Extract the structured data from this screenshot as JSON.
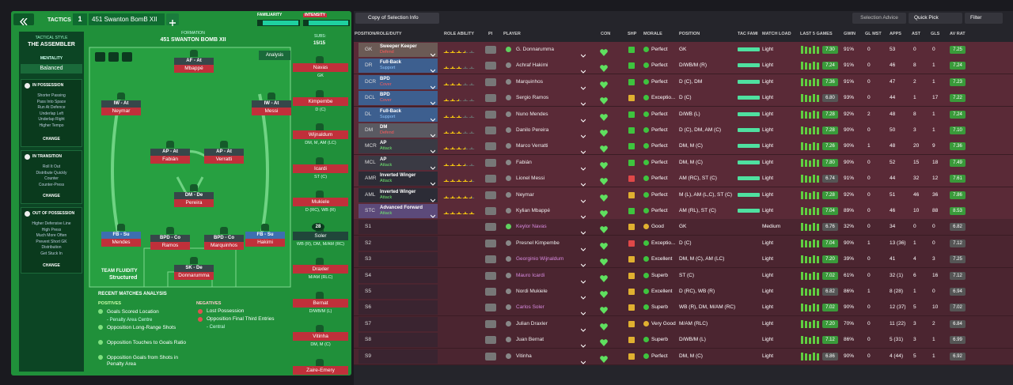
{
  "header": {
    "tab": "TACTICS",
    "tactic_number": "1",
    "tactic_name": "451 Swanton BomB XII",
    "familiarity": "FAMILIARITY",
    "intensity": "INTENSITY"
  },
  "sidebar": {
    "style_label": "TACTICAL STYLE",
    "style": "THE ASSEMBLER",
    "mentality_label": "MENTALITY",
    "mentality": "Balanced",
    "change": "CHANGE",
    "sections": [
      {
        "title": "IN POSSESSION",
        "items": [
          "Shorter Passing",
          "Pass Into Space",
          "Run At Defence",
          "Underlap Left",
          "Underlap Right",
          "Higher Tempo"
        ]
      },
      {
        "title": "IN TRANSITION",
        "items": [
          "Roll It Out",
          "Distribute Quickly",
          "Counter",
          "Counter-Press"
        ]
      },
      {
        "title": "OUT OF POSSESSION",
        "items": [
          "Higher Defensive Line",
          "High Press",
          "Much More Often",
          "Prevent Short GK",
          "Distribution",
          "Get Stuck In"
        ]
      }
    ]
  },
  "formation": {
    "label": "FORMATION",
    "name": "451 SWANTON BOMB XII",
    "analysis": "Analysis",
    "subs_label": "SUBS:",
    "subs_count": "15/15",
    "fluidity_label": "TEAM FLUIDITY",
    "fluidity": "Structured",
    "players": [
      {
        "role": "AF - At",
        "name": "Mbappé"
      },
      {
        "role": "IW - At",
        "name": "Neymar"
      },
      {
        "role": "IW - At",
        "name": "Messi"
      },
      {
        "role": "AP - At",
        "name": "Fabián"
      },
      {
        "role": "AP - At",
        "name": "Verratti"
      },
      {
        "role": "DM - De",
        "name": "Pereira"
      },
      {
        "role": "FB - Su",
        "name": "Mendes"
      },
      {
        "role": "BPD - Co",
        "name": "Ramos"
      },
      {
        "role": "BPD - Co",
        "name": "Marquinhos"
      },
      {
        "role": "FB - Su",
        "name": "Hakimi"
      },
      {
        "role": "SK - De",
        "name": "Donnarumma"
      }
    ],
    "subs": [
      {
        "name": "Navas",
        "pos": "GK"
      },
      {
        "name": "Kimpembe",
        "pos": "D (C)"
      },
      {
        "name": "Wijnaldum",
        "pos": "DM, M, AM (LC)"
      },
      {
        "name": "Icardi",
        "pos": "ST (C)"
      },
      {
        "name": "Mukiele",
        "pos": "D (RC), WB (R)"
      },
      {
        "name": "Soler",
        "number": "28",
        "pos": "WB (R), DM, M/AM (RC)"
      },
      {
        "name": "Draxler",
        "pos": "M/AM (RLC)"
      },
      {
        "name": "Bernat",
        "pos": "D/WB/M (L)"
      },
      {
        "name": "Vitinha",
        "pos": "DM, M (C)"
      },
      {
        "name": "Zaire-Emery"
      }
    ]
  },
  "analysis": {
    "title": "RECENT MATCHES ANALYSIS",
    "positives_label": "POSITIVES",
    "negatives_label": "NEGATIVES",
    "positives": [
      {
        "text": "Goals Scored Location",
        "sub": "- Penalty Area Centre"
      },
      {
        "text": "Opposition Long-Range Shots"
      },
      {
        "text": "Opposition Touches to Goals Ratio"
      },
      {
        "text": "Opposition Goals from Shots in Penalty Area"
      }
    ],
    "negatives": [
      {
        "text": "Lost Possession"
      },
      {
        "text": "Opposition Final Third Entries",
        "sub": "- Central"
      }
    ]
  },
  "toolbar": {
    "view": "Copy of Selection Info",
    "advice": "Selection Advice",
    "quick_pick": "Quick Pick",
    "filter": "Filter"
  },
  "table": {
    "columns": [
      "POSITION/ROLE/DUTY",
      "ROLE ABILITY",
      "PI",
      "PLAYER",
      "CON",
      "SHP",
      "MORALE",
      "POSITION",
      "TAC FAMI",
      "MATCH LOAD",
      "LAST 5 GAMES",
      "GWIN",
      "GL MST",
      "APPS",
      "AST",
      "GLS",
      "AV RAT"
    ],
    "rows": [
      {
        "pos": "GK",
        "role": "Sweeper Keeper",
        "duty": "Defend",
        "ability": 3.5,
        "player": "G. Donnarumma",
        "morale": "Perfect",
        "positions": "GK",
        "load": "Light",
        "last5": "7.30",
        "gwin": "91%",
        "glmst": "0",
        "apps": "53",
        "ast": "0",
        "gls": "0",
        "avrat": "7.25"
      },
      {
        "pos": "DR",
        "role": "Full-Back",
        "duty": "Support",
        "ability": 3,
        "player": "Achraf Hakimi",
        "morale": "Perfect",
        "positions": "D/WB/M (R)",
        "load": "Light",
        "last5": "7.24",
        "gwin": "91%",
        "glmst": "0",
        "apps": "46",
        "ast": "8",
        "gls": "1",
        "avrat": "7.24"
      },
      {
        "pos": "DCR",
        "role": "BPD",
        "duty": "Cover",
        "ability": 3,
        "player": "Marquinhos",
        "morale": "Perfect",
        "positions": "D (C), DM",
        "load": "Light",
        "last5": "7.36",
        "gwin": "91%",
        "glmst": "0",
        "apps": "47",
        "ast": "2",
        "gls": "1",
        "avrat": "7.23"
      },
      {
        "pos": "DCL",
        "role": "BPD",
        "duty": "Cover",
        "ability": 2.5,
        "player": "Sergio Ramos",
        "morale": "Exceptio...",
        "positions": "D (C)",
        "load": "Light",
        "last5": "6.80",
        "gwin": "93%",
        "glmst": "0",
        "apps": "44",
        "ast": "1",
        "gls": "17",
        "avrat": "7.22"
      },
      {
        "pos": "DL",
        "role": "Full-Back",
        "duty": "Support",
        "ability": 3,
        "player": "Nuno Mendes",
        "morale": "Perfect",
        "positions": "D/WB (L)",
        "load": "Light",
        "last5": "7.28",
        "gwin": "92%",
        "glmst": "2",
        "apps": "48",
        "ast": "8",
        "gls": "1",
        "avrat": "7.24"
      },
      {
        "pos": "DM",
        "role": "DM",
        "duty": "Defend",
        "ability": 3,
        "player": "Danilo Pereira",
        "morale": "Perfect",
        "positions": "D (C), DM, AM (C)",
        "load": "Light",
        "last5": "7.28",
        "gwin": "90%",
        "glmst": "0",
        "apps": "50",
        "ast": "3",
        "gls": "1",
        "avrat": "7.10"
      },
      {
        "pos": "MCR",
        "role": "AP",
        "duty": "Attack",
        "ability": 3.5,
        "player": "Marco Verratti",
        "morale": "Perfect",
        "positions": "DM, M (C)",
        "load": "Light",
        "last5": "7.26",
        "gwin": "90%",
        "glmst": "1",
        "apps": "48",
        "ast": "20",
        "gls": "9",
        "avrat": "7.36"
      },
      {
        "pos": "MCL",
        "role": "AP",
        "duty": "Attack",
        "ability": 3.5,
        "player": "Fabián",
        "morale": "Perfect",
        "positions": "DM, M (C)",
        "load": "Light",
        "last5": "7.80",
        "gwin": "90%",
        "glmst": "0",
        "apps": "52",
        "ast": "15",
        "gls": "18",
        "avrat": "7.49"
      },
      {
        "pos": "AMR",
        "role": "Inverted Winger",
        "duty": "Attack",
        "ability": 4.5,
        "player": "Lionel Messi",
        "morale": "Perfect",
        "positions": "AM (RC), ST (C)",
        "load": "Light",
        "last5": "6.74",
        "gwin": "91%",
        "glmst": "0",
        "apps": "44",
        "ast": "32",
        "gls": "12",
        "avrat": "7.61"
      },
      {
        "pos": "AML",
        "role": "Inverted Winger",
        "duty": "Attack",
        "ability": 4.5,
        "player": "Neymar",
        "morale": "Perfect",
        "positions": "M (L), AM (L,C), ST (C)",
        "load": "Light",
        "last5": "7.28",
        "gwin": "92%",
        "glmst": "0",
        "apps": "51",
        "ast": "46",
        "gls": "36",
        "avrat": "7.86"
      },
      {
        "pos": "STC",
        "role": "Advanced Forward",
        "duty": "Attack",
        "ability": 5,
        "player": "Kylian Mbappé",
        "morale": "Perfect",
        "positions": "AM (RL), ST (C)",
        "load": "Light",
        "last5": "7.04",
        "gwin": "89%",
        "glmst": "0",
        "apps": "46",
        "ast": "10",
        "gls": "88",
        "avrat": "8.53"
      },
      {
        "pos": "S1",
        "player": "Keylor Navas",
        "morale": "Good",
        "positions": "GK",
        "load": "Medium",
        "last5": "6.76",
        "gwin": "32%",
        "glmst": "0",
        "apps": "34",
        "ast": "0",
        "gls": "0",
        "avrat": "6.82"
      },
      {
        "pos": "S2",
        "player": "Presnel Kimpembe",
        "morale": "Exceptio...",
        "positions": "D (C)",
        "load": "Light",
        "last5": "7.04",
        "gwin": "90%",
        "glmst": "1",
        "apps": "13 (36)",
        "ast": "1",
        "gls": "0",
        "avrat": "7.12"
      },
      {
        "pos": "S3",
        "player": "Georginio Wijnaldum",
        "morale": "Excellent",
        "positions": "DM, M (C), AM (LC)",
        "load": "Light",
        "last5": "7.20",
        "gwin": "39%",
        "glmst": "0",
        "apps": "41",
        "ast": "4",
        "gls": "3",
        "avrat": "7.25"
      },
      {
        "pos": "S4",
        "player": "Mauro Icardi",
        "morale": "Superb",
        "positions": "ST (C)",
        "load": "Light",
        "last5": "7.02",
        "gwin": "61%",
        "glmst": "0",
        "apps": "32 (1)",
        "ast": "6",
        "gls": "16",
        "avrat": "7.12"
      },
      {
        "pos": "S5",
        "player": "Nordi Mukiele",
        "morale": "Excellent",
        "positions": "D (RC), WB (R)",
        "load": "Light",
        "last5": "6.82",
        "gwin": "86%",
        "glmst": "1",
        "apps": "8 (28)",
        "ast": "1",
        "gls": "0",
        "avrat": "6.94"
      },
      {
        "pos": "S6",
        "player": "Carlos Soler",
        "morale": "Superb",
        "positions": "WB (R), DM, M/AM (RC)",
        "load": "Light",
        "last5": "7.02",
        "gwin": "90%",
        "glmst": "0",
        "apps": "12 (37)",
        "ast": "5",
        "gls": "10",
        "avrat": "7.02"
      },
      {
        "pos": "S7",
        "player": "Julian Draxler",
        "morale": "Very Good",
        "positions": "M/AM (RLC)",
        "load": "Light",
        "last5": "7.20",
        "gwin": "70%",
        "glmst": "0",
        "apps": "11 (22)",
        "ast": "3",
        "gls": "2",
        "avrat": "6.84"
      },
      {
        "pos": "S8",
        "player": "Juan Bernat",
        "morale": "Superb",
        "positions": "D/WB/M (L)",
        "load": "Light",
        "last5": "7.12",
        "gwin": "86%",
        "glmst": "0",
        "apps": "5 (31)",
        "ast": "3",
        "gls": "1",
        "avrat": "6.99"
      },
      {
        "pos": "S9",
        "player": "Vitinha",
        "morale": "Perfect",
        "positions": "DM, M (C)",
        "load": "Light",
        "last5": "6.86",
        "gwin": "90%",
        "glmst": "0",
        "apps": "4 (44)",
        "ast": "5",
        "gls": "1",
        "avrat": "6.92"
      }
    ]
  }
}
